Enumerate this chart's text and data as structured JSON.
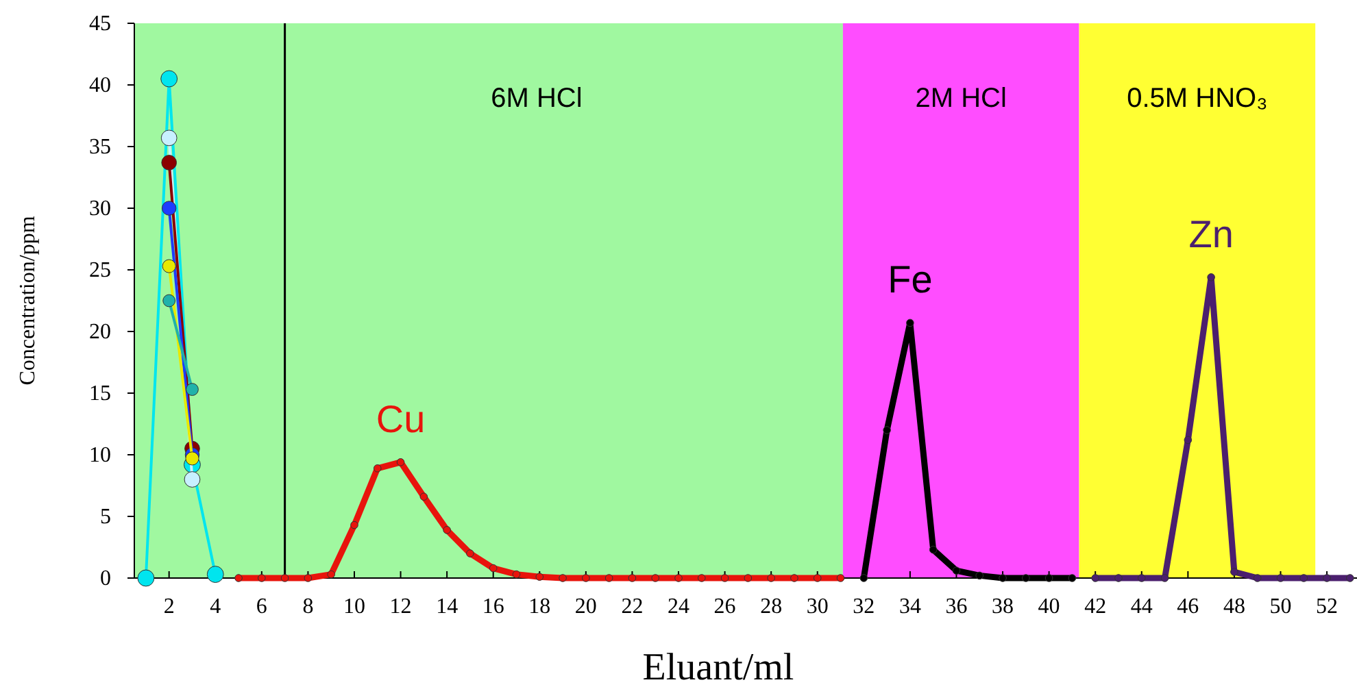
{
  "chart_data": {
    "type": "line",
    "xlabel": "Eluant/ml",
    "ylabel": "Concentration/ppm",
    "xlim": [
      0.5,
      53.3
    ],
    "xticks": [
      2,
      4,
      6,
      8,
      10,
      12,
      14,
      16,
      18,
      20,
      22,
      24,
      26,
      28,
      30,
      32,
      34,
      36,
      38,
      40,
      42,
      44,
      46,
      48,
      50,
      52
    ],
    "ylim": [
      0,
      45
    ],
    "yticks": [
      0,
      5,
      10,
      15,
      20,
      25,
      30,
      35,
      40,
      45
    ],
    "grid": false,
    "marker": "circle",
    "line_style": "solid",
    "bands": [
      {
        "axis": "x",
        "from": 0.5,
        "to": 31.1,
        "label": "6M HCl",
        "color": "#a0f8a0"
      },
      {
        "axis": "x",
        "from": 31.1,
        "to": 41.3,
        "label": "2M HCl",
        "color": "#ff4dff"
      },
      {
        "axis": "x",
        "from": 41.3,
        "to": 51.5,
        "label": "0.5M HNO₃",
        "color": "#ffff33"
      }
    ],
    "ref_lines": [
      {
        "axis": "x",
        "value": 7,
        "color": "#000000"
      }
    ],
    "series": [
      {
        "color": "#00e5ee",
        "x": [
          1,
          2,
          3,
          4
        ],
        "values": [
          0,
          40.5,
          9.2,
          0.3
        ]
      },
      {
        "color": "#c8f0ff",
        "x": [
          2,
          3
        ],
        "values": [
          35.7,
          8
        ]
      },
      {
        "color": "#8b0000",
        "x": [
          2,
          3
        ],
        "values": [
          33.7,
          10.5
        ]
      },
      {
        "color": "#1e3cff",
        "x": [
          2,
          3
        ],
        "values": [
          30,
          10
        ]
      },
      {
        "color": "#e8e800",
        "x": [
          2,
          3
        ],
        "values": [
          25.3,
          9.7
        ]
      },
      {
        "color": "#20b2aa",
        "x": [
          2,
          3
        ],
        "values": [
          22.5,
          15.3
        ]
      },
      {
        "name": "Cu",
        "color": "#e8140c",
        "x": [
          5,
          6,
          7,
          8,
          9,
          10,
          11,
          12,
          13,
          14,
          15,
          16,
          17,
          18,
          19,
          20,
          21,
          22,
          23,
          24,
          25,
          26,
          27,
          28,
          29,
          30,
          31
        ],
        "values": [
          0,
          0,
          0,
          0,
          0.3,
          4.3,
          8.9,
          9.4,
          6.6,
          3.9,
          2,
          0.8,
          0.3,
          0.1,
          0,
          0,
          0,
          0,
          0,
          0,
          0,
          0,
          0,
          0,
          0,
          0,
          0
        ]
      },
      {
        "name": "Fe",
        "color": "#000000",
        "x": [
          32,
          33,
          34,
          35,
          36,
          37,
          38,
          39,
          40,
          41
        ],
        "values": [
          0,
          12,
          20.7,
          2.3,
          0.6,
          0.2,
          0,
          0,
          0,
          0
        ]
      },
      {
        "name": "Zn",
        "color": "#4b1f6e",
        "x": [
          42,
          43,
          44,
          45,
          46,
          47,
          48,
          49,
          50,
          51,
          52,
          53
        ],
        "values": [
          0,
          0,
          0,
          0,
          11.2,
          24.4,
          0.5,
          0,
          0,
          0,
          0,
          0
        ]
      }
    ]
  }
}
